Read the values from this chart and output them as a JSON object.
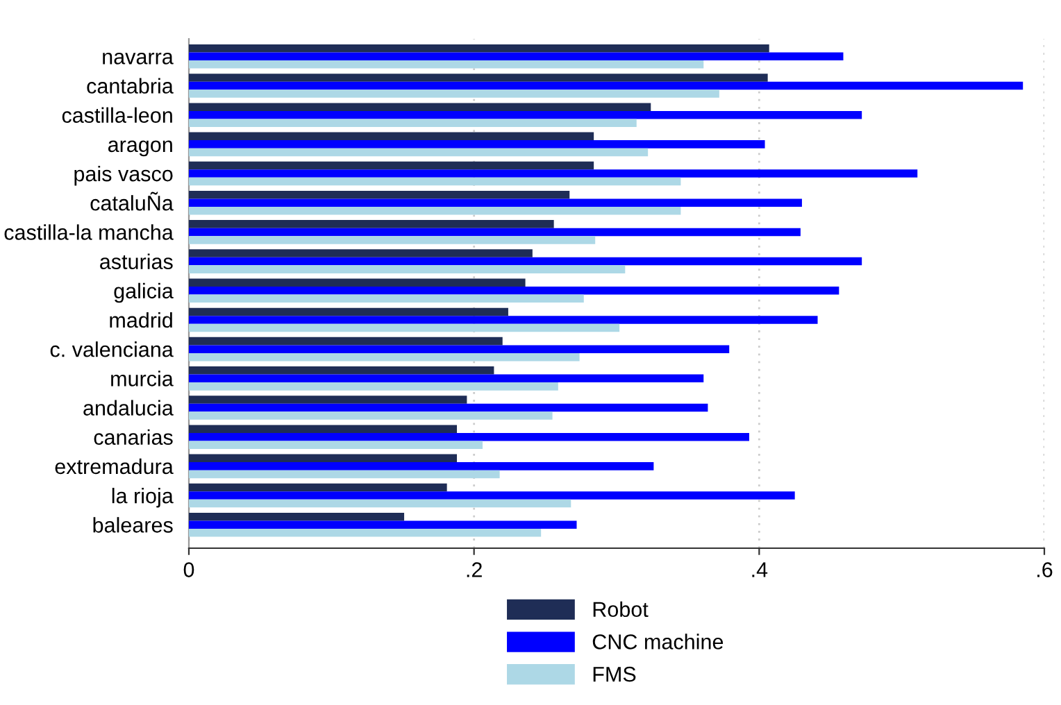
{
  "chart_data": {
    "type": "bar",
    "orientation": "horizontal",
    "categories": [
      "navarra",
      "cantabria",
      "castilla-leon",
      "aragon",
      "pais vasco",
      "cataluÑa",
      "castilla-la mancha",
      "asturias",
      "galicia",
      "madrid",
      "c. valenciana",
      "murcia",
      "andalucia",
      "canarias",
      "extremadura",
      "la rioja",
      "baleares"
    ],
    "series": [
      {
        "name": "Robot",
        "color": "#1f2d56",
        "values": [
          0.407,
          0.406,
          0.324,
          0.284,
          0.284,
          0.267,
          0.256,
          0.241,
          0.236,
          0.224,
          0.22,
          0.214,
          0.195,
          0.188,
          0.188,
          0.181,
          0.151
        ]
      },
      {
        "name": "CNC machine",
        "color": "#0000ff",
        "values": [
          0.459,
          0.585,
          0.472,
          0.404,
          0.511,
          0.43,
          0.429,
          0.472,
          0.456,
          0.441,
          0.379,
          0.361,
          0.364,
          0.393,
          0.326,
          0.425,
          0.272
        ]
      },
      {
        "name": "FMS",
        "color": "#add8e6",
        "values": [
          0.361,
          0.372,
          0.314,
          0.322,
          0.345,
          0.345,
          0.285,
          0.306,
          0.277,
          0.302,
          0.274,
          0.259,
          0.255,
          0.206,
          0.218,
          0.268,
          0.247
        ]
      }
    ],
    "xlim": [
      0,
      0.6
    ],
    "xticks": [
      0,
      {
        "value": 0.2,
        "label": ".2"
      },
      {
        "value": 0.4,
        "label": ".4"
      },
      {
        "value": 0.6,
        "label": ".6"
      }
    ],
    "grid": "x",
    "legend": "bottom"
  }
}
